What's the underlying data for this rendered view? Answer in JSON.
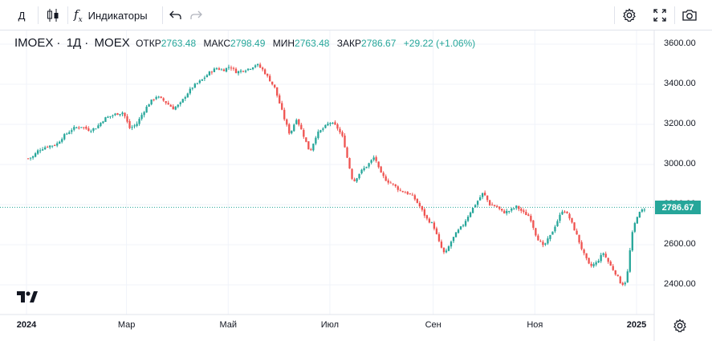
{
  "toolbar": {
    "interval": "Д",
    "chart_type_icon": "candles-icon",
    "indicators_label": "Индикаторы",
    "undo_icon": "undo-icon",
    "redo_icon": "redo-icon",
    "settings_icon": "gear-icon",
    "fullscreen_icon": "fullscreen-icon",
    "snapshot_icon": "camera-icon"
  },
  "legend": {
    "symbol": "IMOEX",
    "interval": "1Д",
    "exchange": "MOEX",
    "open_label": "ОТКР",
    "open": "2763.48",
    "high_label": "МАКС",
    "high": "2798.49",
    "low_label": "МИН",
    "low": "2763.48",
    "close_label": "ЗАКР",
    "close": "2786.67",
    "change": "+29.22 (+1.06%)"
  },
  "last_price_label": "2786.67",
  "colors": {
    "up": "#26a69a",
    "down": "#ef5350",
    "grid": "#f0f3fa"
  },
  "chart_data": {
    "type": "candlestick",
    "title": "IMOEX 1Д MOEX",
    "ylim": [
      2300,
      3640
    ],
    "y_ticks": [
      {
        "label": "3600.00",
        "value": 3600
      },
      {
        "label": "3400.00",
        "value": 3400
      },
      {
        "label": "3200.00",
        "value": 3200
      },
      {
        "label": "3000.00",
        "value": 3000
      },
      {
        "label": "2800.00",
        "value": 2800
      },
      {
        "label": "2600.00",
        "value": 2600
      },
      {
        "label": "2400.00",
        "value": 2400
      }
    ],
    "x_ticks": [
      {
        "label": "2024",
        "day": 0
      },
      {
        "label": "Мар",
        "day": 60
      },
      {
        "label": "Май",
        "day": 121
      },
      {
        "label": "Июл",
        "day": 182
      },
      {
        "label": "Сен",
        "day": 244
      },
      {
        "label": "Ноя",
        "day": 305
      },
      {
        "label": "2025",
        "day": 366
      }
    ],
    "x_range_days": [
      0,
      372
    ],
    "last_close": 2786.67,
    "path": [
      [
        1,
        3030
      ],
      [
        4,
        3040
      ],
      [
        7,
        3070
      ],
      [
        12,
        3090
      ],
      [
        18,
        3100
      ],
      [
        22,
        3140
      ],
      [
        28,
        3180
      ],
      [
        33,
        3190
      ],
      [
        38,
        3170
      ],
      [
        42,
        3185
      ],
      [
        47,
        3230
      ],
      [
        53,
        3250
      ],
      [
        58,
        3260
      ],
      [
        62,
        3180
      ],
      [
        66,
        3200
      ],
      [
        70,
        3260
      ],
      [
        74,
        3310
      ],
      [
        78,
        3340
      ],
      [
        82,
        3320
      ],
      [
        88,
        3280
      ],
      [
        92,
        3300
      ],
      [
        96,
        3350
      ],
      [
        100,
        3390
      ],
      [
        105,
        3420
      ],
      [
        110,
        3460
      ],
      [
        114,
        3480
      ],
      [
        118,
        3470
      ],
      [
        122,
        3490
      ],
      [
        126,
        3460
      ],
      [
        130,
        3470
      ],
      [
        134,
        3480
      ],
      [
        138,
        3500
      ],
      [
        142,
        3470
      ],
      [
        146,
        3420
      ],
      [
        149,
        3380
      ],
      [
        152,
        3300
      ],
      [
        155,
        3220
      ],
      [
        158,
        3150
      ],
      [
        162,
        3230
      ],
      [
        166,
        3150
      ],
      [
        170,
        3060
      ],
      [
        174,
        3150
      ],
      [
        178,
        3180
      ],
      [
        182,
        3210
      ],
      [
        186,
        3190
      ],
      [
        190,
        3130
      ],
      [
        193,
        3010
      ],
      [
        196,
        2910
      ],
      [
        200,
        2960
      ],
      [
        205,
        3000
      ],
      [
        209,
        3040
      ],
      [
        212,
        2960
      ],
      [
        216,
        2920
      ],
      [
        220,
        2900
      ],
      [
        224,
        2870
      ],
      [
        228,
        2860
      ],
      [
        232,
        2840
      ],
      [
        236,
        2790
      ],
      [
        240,
        2730
      ],
      [
        244,
        2700
      ],
      [
        248,
        2600
      ],
      [
        251,
        2550
      ],
      [
        255,
        2620
      ],
      [
        258,
        2660
      ],
      [
        262,
        2700
      ],
      [
        266,
        2760
      ],
      [
        270,
        2810
      ],
      [
        274,
        2860
      ],
      [
        278,
        2800
      ],
      [
        282,
        2790
      ],
      [
        286,
        2760
      ],
      [
        290,
        2770
      ],
      [
        294,
        2790
      ],
      [
        298,
        2760
      ],
      [
        302,
        2740
      ],
      [
        306,
        2640
      ],
      [
        310,
        2590
      ],
      [
        314,
        2640
      ],
      [
        318,
        2710
      ],
      [
        322,
        2780
      ],
      [
        326,
        2730
      ],
      [
        330,
        2650
      ],
      [
        334,
        2560
      ],
      [
        338,
        2490
      ],
      [
        342,
        2510
      ],
      [
        346,
        2560
      ],
      [
        350,
        2500
      ],
      [
        354,
        2450
      ],
      [
        357,
        2400
      ],
      [
        360,
        2420
      ],
      [
        363,
        2640
      ],
      [
        366,
        2740
      ],
      [
        369,
        2770
      ],
      [
        372,
        2787
      ]
    ]
  }
}
